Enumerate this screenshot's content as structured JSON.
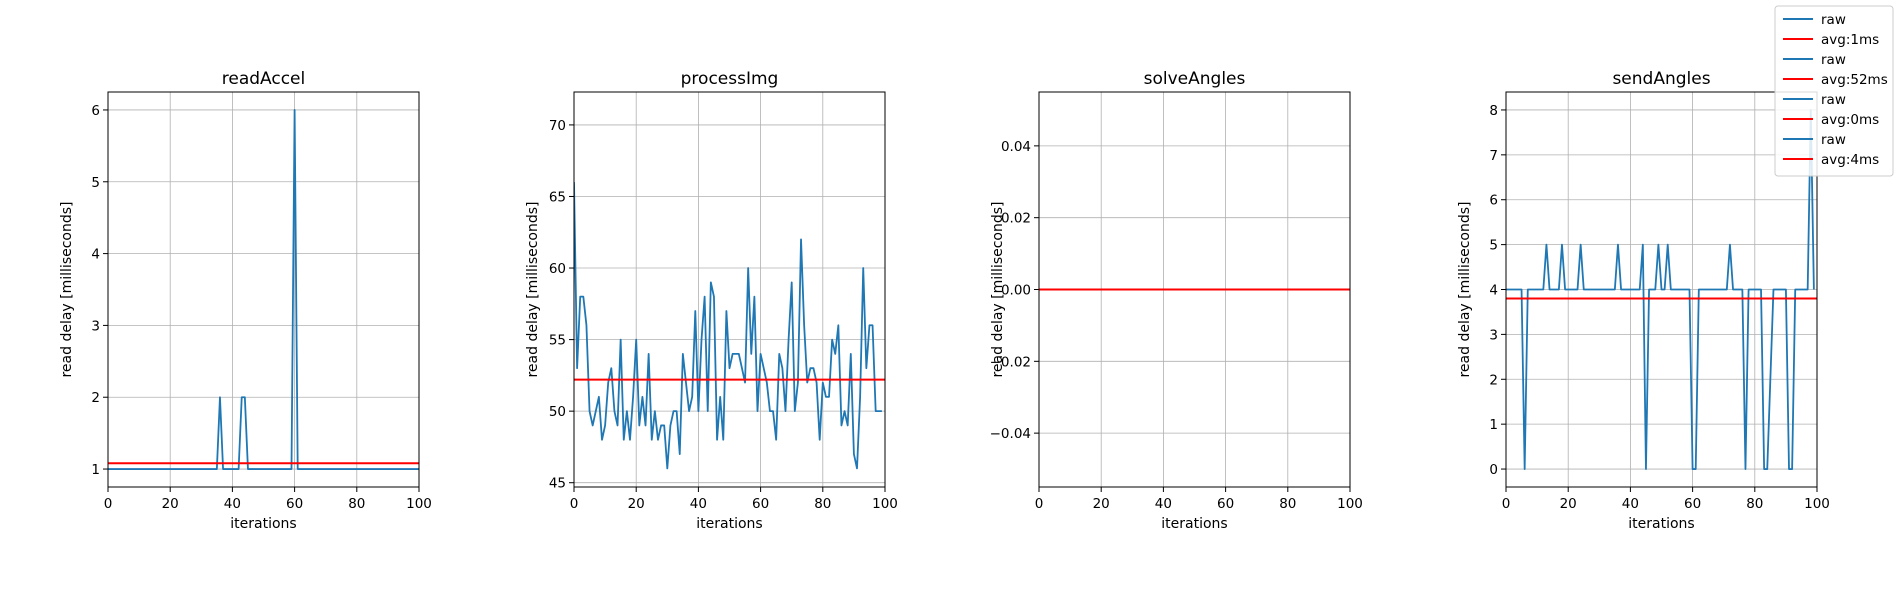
{
  "figure": {
    "colors": {
      "raw": "#1f77b4",
      "avg": "#ff0000",
      "grid": "#b0b0b0",
      "spine": "#000000"
    },
    "legend_position": "top-right"
  },
  "chart_data": [
    {
      "type": "line",
      "title": "readAccel",
      "xlabel": "iterations",
      "ylabel": "read delay [milliseconds]",
      "xlim": [
        0,
        100
      ],
      "ylim": [
        0.75,
        6.25
      ],
      "xticks": [
        0,
        20,
        40,
        60,
        80,
        100
      ],
      "yticks": [
        1,
        2,
        3,
        4,
        5,
        6
      ],
      "grid": true,
      "series": [
        {
          "name": "raw",
          "color": "#1f77b4",
          "x": [
            0,
            35,
            36,
            37,
            42,
            43,
            44,
            45,
            59,
            60,
            61,
            100
          ],
          "y": [
            1,
            1,
            2,
            1,
            1,
            2,
            2,
            1,
            1,
            6,
            1,
            1
          ]
        },
        {
          "name": "avg:1ms",
          "color": "#ff0000",
          "constant": 1.08
        }
      ]
    },
    {
      "type": "line",
      "title": "processImg",
      "xlabel": "iterations",
      "ylabel": "read delay [milliseconds]",
      "xlim": [
        0,
        100
      ],
      "ylim": [
        44.7,
        72.3
      ],
      "xticks": [
        0,
        20,
        40,
        60,
        80,
        100
      ],
      "yticks": [
        45,
        50,
        55,
        60,
        65,
        70
      ],
      "grid": true,
      "series": [
        {
          "name": "raw",
          "color": "#1f77b4",
          "x": [
            0,
            1,
            2,
            3,
            4,
            5,
            6,
            7,
            8,
            9,
            10,
            11,
            12,
            13,
            14,
            15,
            16,
            17,
            18,
            19,
            20,
            21,
            22,
            23,
            24,
            25,
            26,
            27,
            28,
            29,
            30,
            31,
            32,
            33,
            34,
            35,
            36,
            37,
            38,
            39,
            40,
            41,
            42,
            43,
            44,
            45,
            46,
            47,
            48,
            49,
            50,
            51,
            52,
            53,
            54,
            55,
            56,
            57,
            58,
            59,
            60,
            61,
            62,
            63,
            64,
            65,
            66,
            67,
            68,
            69,
            70,
            71,
            72,
            73,
            74,
            75,
            76,
            77,
            78,
            79,
            80,
            81,
            82,
            83,
            84,
            85,
            86,
            87,
            88,
            89,
            90,
            91,
            92,
            93,
            94,
            95,
            96,
            97,
            98,
            99
          ],
          "y": [
            66,
            53,
            58,
            58,
            56,
            50,
            49,
            50,
            51,
            48,
            49,
            52,
            53,
            50,
            49,
            55,
            48,
            50,
            48,
            51,
            55,
            49,
            51,
            49,
            54,
            48,
            50,
            48,
            49,
            49,
            46,
            49,
            50,
            50,
            47,
            54,
            52,
            50,
            51,
            57,
            50,
            55,
            58,
            50,
            59,
            58,
            48,
            51,
            48,
            57,
            53,
            54,
            54,
            54,
            53,
            52,
            60,
            54,
            58,
            50,
            54,
            53,
            52,
            50,
            50,
            48,
            54,
            53,
            50,
            55,
            59,
            50,
            52,
            62,
            56,
            52,
            53,
            53,
            52,
            48,
            52,
            51,
            51,
            55,
            54,
            56,
            49,
            50,
            49,
            54,
            47,
            46,
            51,
            60,
            53,
            56,
            56,
            50,
            50,
            50
          ]
        },
        {
          "name": "avg:52ms",
          "color": "#ff0000",
          "constant": 52.2
        }
      ]
    },
    {
      "type": "line",
      "title": "solveAngles",
      "xlabel": "iterations",
      "ylabel": "read delay [milliseconds]",
      "xlim": [
        0,
        100
      ],
      "ylim": [
        -0.055,
        0.055
      ],
      "xticks": [
        0,
        20,
        40,
        60,
        80,
        100
      ],
      "yticks": [
        -0.04,
        -0.02,
        0.0,
        0.02,
        0.04
      ],
      "ytick_labels": [
        "−0.04",
        "−0.02",
        "0.00",
        "0.02",
        "0.04"
      ],
      "grid": true,
      "series": [
        {
          "name": "raw",
          "color": "#1f77b4",
          "x": [
            0,
            100
          ],
          "y": [
            0,
            0
          ]
        },
        {
          "name": "avg:0ms",
          "color": "#ff0000",
          "constant": 0
        }
      ]
    },
    {
      "type": "line",
      "title": "sendAngles",
      "xlabel": "iterations",
      "ylabel": "read delay [milliseconds]",
      "xlim": [
        0,
        100
      ],
      "ylim": [
        -0.4,
        8.4
      ],
      "xticks": [
        0,
        20,
        40,
        60,
        80,
        100
      ],
      "yticks": [
        0,
        1,
        2,
        3,
        4,
        5,
        6,
        7,
        8
      ],
      "grid": true,
      "series": [
        {
          "name": "raw",
          "color": "#1f77b4",
          "x": [
            0,
            5,
            6,
            7,
            12,
            13,
            14,
            17,
            18,
            19,
            23,
            24,
            25,
            35,
            36,
            37,
            43,
            44,
            45,
            46,
            48,
            49,
            50,
            51,
            52,
            53,
            59,
            60,
            61,
            62,
            71,
            72,
            73,
            76,
            77,
            78,
            82,
            83,
            84,
            86,
            87,
            90,
            91,
            92,
            93,
            97,
            98,
            99
          ],
          "y": [
            4,
            4,
            0,
            4,
            4,
            5,
            4,
            4,
            5,
            4,
            4,
            5,
            4,
            4,
            5,
            4,
            4,
            5,
            0,
            4,
            4,
            5,
            4,
            4,
            5,
            4,
            4,
            0,
            0,
            4,
            4,
            5,
            4,
            4,
            0,
            4,
            4,
            0,
            0,
            4,
            4,
            4,
            0,
            0,
            4,
            4,
            8,
            4
          ]
        },
        {
          "name": "avg:4ms",
          "color": "#ff0000",
          "constant": 3.8
        }
      ]
    }
  ],
  "legend": {
    "entries": [
      {
        "label": "raw",
        "color": "#1f77b4"
      },
      {
        "label": "avg:1ms",
        "color": "#ff0000"
      },
      {
        "label": "raw",
        "color": "#1f77b4"
      },
      {
        "label": "avg:52ms",
        "color": "#ff0000"
      },
      {
        "label": "raw",
        "color": "#1f77b4"
      },
      {
        "label": "avg:0ms",
        "color": "#ff0000"
      },
      {
        "label": "raw",
        "color": "#1f77b4"
      },
      {
        "label": "avg:4ms",
        "color": "#ff0000"
      }
    ]
  }
}
